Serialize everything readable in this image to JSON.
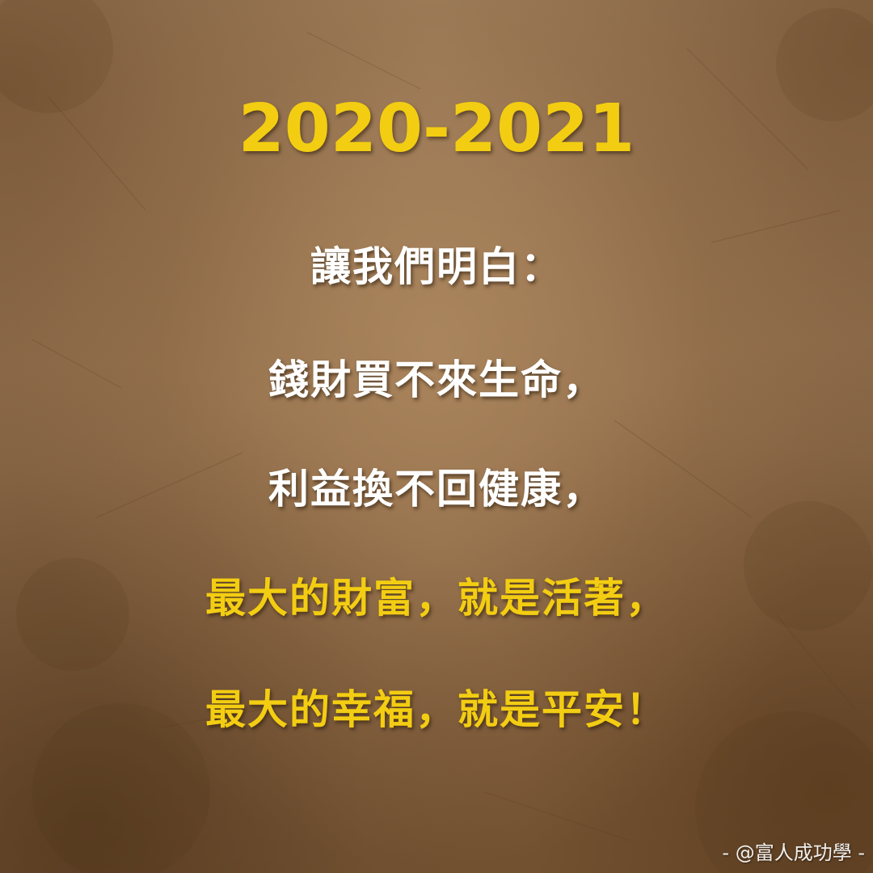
{
  "heading": {
    "year": "2020-2021"
  },
  "lines": [
    "讓我們明白：",
    "錢財買不來生命，",
    "利益換不回健康，",
    "最大的財富，就是活著，",
    "最大的幸福，就是平安！"
  ],
  "watermark": "- @富人成功學 -",
  "colors": {
    "accent_gold": "#f3cd12",
    "text_white": "#ffffff",
    "background_brown": "#8f6d4b"
  }
}
